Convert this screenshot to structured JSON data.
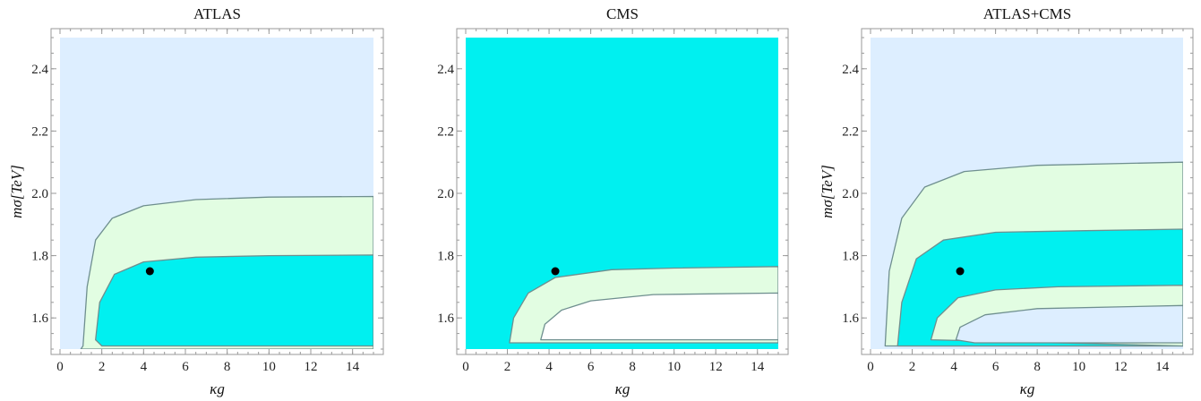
{
  "chart_data": [
    {
      "type": "contour",
      "title": "ATLAS",
      "xlabel": "κg",
      "ylabel": "mσ[TeV]",
      "xlim": [
        0,
        15
      ],
      "ylim": [
        1.5,
        2.5
      ],
      "xticks": [
        "0",
        "2",
        "4",
        "6",
        "8",
        "10",
        "12",
        "14"
      ],
      "yticks": [
        "1.6",
        "1.8",
        "2.0",
        "2.2",
        "2.4"
      ],
      "background_color": "#ddeeff",
      "regions": [
        {
          "color": "#e2fde2",
          "outline": [
            [
              1.1,
              1.51
            ],
            [
              1.3,
              1.7
            ],
            [
              1.7,
              1.85
            ],
            [
              2.5,
              1.92
            ],
            [
              4,
              1.96
            ],
            [
              6.5,
              1.98
            ],
            [
              10,
              1.988
            ],
            [
              15,
              1.99
            ],
            [
              15,
              1.5
            ],
            [
              1.0,
              1.5
            ]
          ]
        },
        {
          "color": "#00f0f0",
          "outline": [
            [
              1.7,
              1.53
            ],
            [
              1.9,
              1.65
            ],
            [
              2.6,
              1.74
            ],
            [
              4,
              1.78
            ],
            [
              6.5,
              1.795
            ],
            [
              10,
              1.8
            ],
            [
              15,
              1.802
            ],
            [
              15,
              1.51
            ],
            [
              2.0,
              1.51
            ]
          ]
        }
      ],
      "point": {
        "x": 4.3,
        "y": 1.75
      }
    },
    {
      "type": "contour",
      "title": "CMS",
      "xlabel": "κg",
      "ylabel": "",
      "xlim": [
        0,
        15
      ],
      "ylim": [
        1.5,
        2.5
      ],
      "xticks": [
        "0",
        "2",
        "4",
        "6",
        "8",
        "10",
        "12",
        "14"
      ],
      "yticks": [
        "1.6",
        "1.8",
        "2.0",
        "2.2",
        "2.4"
      ],
      "background_color": "#00f0f0",
      "regions": [
        {
          "color": "#e2fde2",
          "outline": [
            [
              2.1,
              1.52
            ],
            [
              2.3,
              1.6
            ],
            [
              3,
              1.68
            ],
            [
              4.3,
              1.73
            ],
            [
              7,
              1.755
            ],
            [
              10,
              1.76
            ],
            [
              15,
              1.765
            ],
            [
              15,
              1.52
            ]
          ]
        },
        {
          "color": "#ffffff",
          "outline": [
            [
              3.6,
              1.53
            ],
            [
              3.8,
              1.58
            ],
            [
              4.6,
              1.625
            ],
            [
              6,
              1.655
            ],
            [
              9,
              1.675
            ],
            [
              15,
              1.68
            ],
            [
              15,
              1.53
            ]
          ]
        }
      ],
      "point": {
        "x": 4.3,
        "y": 1.75
      }
    },
    {
      "type": "contour",
      "title": "ATLAS+CMS",
      "xlabel": "κg",
      "ylabel": "mσ[TeV]",
      "xlim": [
        0,
        15
      ],
      "ylim": [
        1.5,
        2.5
      ],
      "xticks": [
        "0",
        "2",
        "4",
        "6",
        "8",
        "10",
        "12",
        "14"
      ],
      "yticks": [
        "1.6",
        "1.8",
        "2.0",
        "2.2",
        "2.4"
      ],
      "background_color": "#ddeeff",
      "regions": [
        {
          "color": "#e2fde2",
          "outline": [
            [
              0.7,
              1.51
            ],
            [
              0.9,
              1.75
            ],
            [
              1.5,
              1.92
            ],
            [
              2.6,
              2.02
            ],
            [
              4.5,
              2.07
            ],
            [
              8,
              2.09
            ],
            [
              15,
              2.1
            ],
            [
              15,
              1.51
            ]
          ]
        },
        {
          "color": "#00f0f0",
          "outline": [
            [
              1.3,
              1.51
            ],
            [
              1.5,
              1.65
            ],
            [
              2.2,
              1.79
            ],
            [
              3.5,
              1.85
            ],
            [
              6,
              1.875
            ],
            [
              10,
              1.88
            ],
            [
              15,
              1.885
            ],
            [
              15,
              1.51
            ]
          ]
        },
        {
          "color": "#e2fde2",
          "outline": [
            [
              2.9,
              1.53
            ],
            [
              3.2,
              1.6
            ],
            [
              4.2,
              1.665
            ],
            [
              6,
              1.69
            ],
            [
              9,
              1.7
            ],
            [
              15,
              1.705
            ],
            [
              15,
              1.51
            ]
          ]
        },
        {
          "color": "#ddeeff",
          "outline": [
            [
              4.1,
              1.53
            ],
            [
              4.3,
              1.57
            ],
            [
              5.5,
              1.61
            ],
            [
              8,
              1.63
            ],
            [
              15,
              1.64
            ],
            [
              15,
              1.52
            ],
            [
              5,
              1.52
            ]
          ]
        }
      ],
      "point": {
        "x": 4.3,
        "y": 1.75
      }
    }
  ]
}
